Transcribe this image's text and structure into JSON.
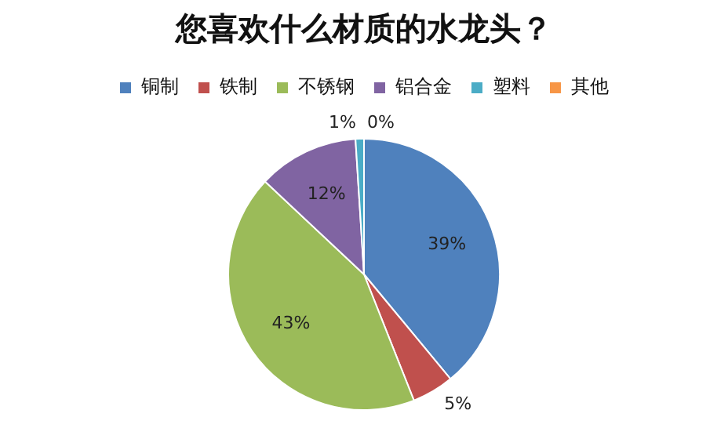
{
  "chart_data": {
    "type": "pie",
    "title": "您喜欢什么材质的水龙头？",
    "categories": [
      "铜制",
      "铁制",
      "不锈钢",
      "铝合金",
      "塑料",
      "其他"
    ],
    "values": [
      39,
      5,
      43,
      12,
      1,
      0
    ],
    "value_labels": [
      "39%",
      "5%",
      "43%",
      "12%",
      "1%",
      "0%"
    ],
    "colors": [
      "#4f81bd",
      "#c0504d",
      "#9bbb59",
      "#8064a2",
      "#4bacc6",
      "#f79646"
    ],
    "legend": "top"
  }
}
